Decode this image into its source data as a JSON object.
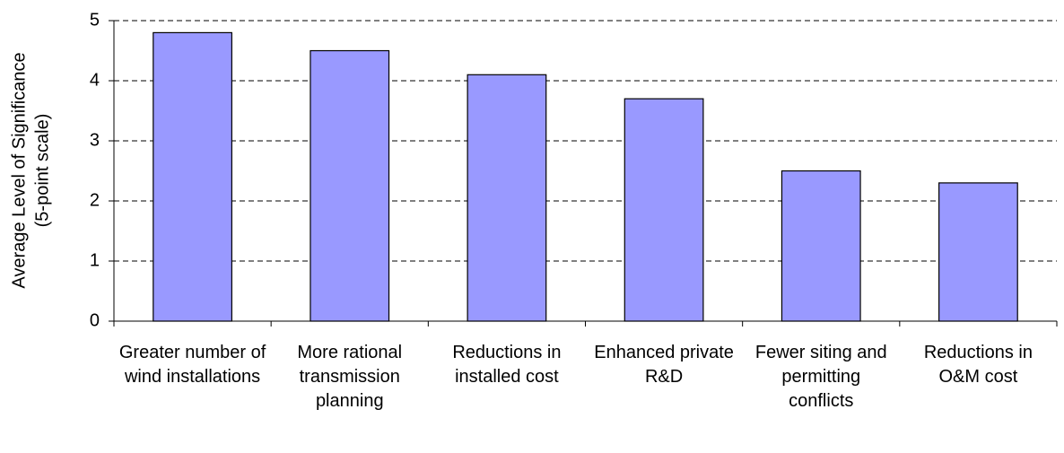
{
  "chart_data": {
    "type": "bar",
    "ylabel": [
      "Average Level of Significance",
      "(5-point scale)"
    ],
    "categories": [
      "Greater number of wind installations",
      "More rational transmission planning",
      "Reductions in installed cost",
      "Enhanced private R&D",
      "Fewer siting and permitting conflicts",
      "Reductions in O&M cost"
    ],
    "values": [
      4.8,
      4.5,
      4.1,
      3.7,
      2.5,
      2.3
    ],
    "color": "#9999ff",
    "ylim": [
      0,
      5
    ],
    "yticks": [
      0,
      1,
      2,
      3,
      4,
      5
    ],
    "grid": true
  }
}
